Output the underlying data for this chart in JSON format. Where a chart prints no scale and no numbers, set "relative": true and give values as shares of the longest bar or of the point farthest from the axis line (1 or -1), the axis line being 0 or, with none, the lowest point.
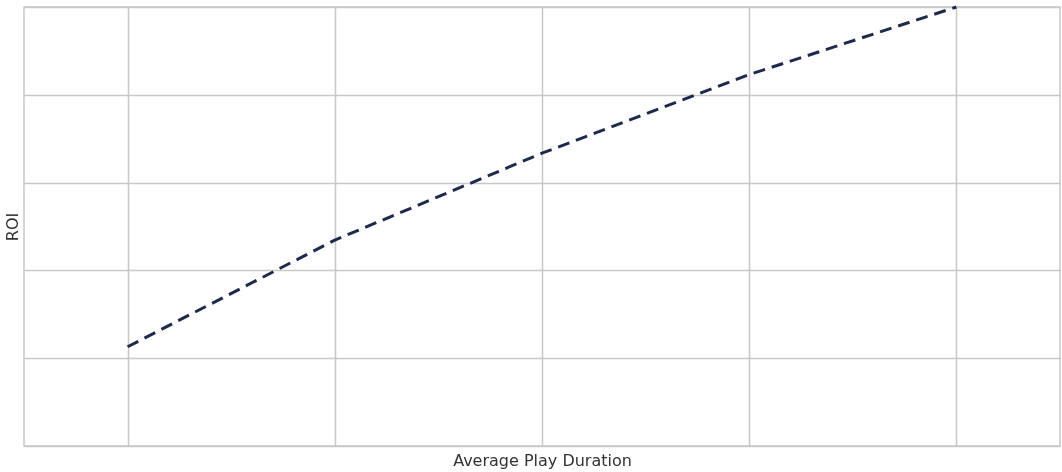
{
  "chart_data": {
    "type": "line",
    "xlabel": "Average Play Duration",
    "ylabel": "ROI",
    "relative": true,
    "categories": [
      null,
      null,
      null,
      null,
      null
    ],
    "series": [
      {
        "color": "#1b2a4e",
        "values": [
          0.226,
          0.469,
          0.667,
          0.846,
          1
        ]
      }
    ],
    "grid": true,
    "legend": false,
    "tick_labels": false,
    "marker": "none",
    "line_style": "dashed"
  }
}
